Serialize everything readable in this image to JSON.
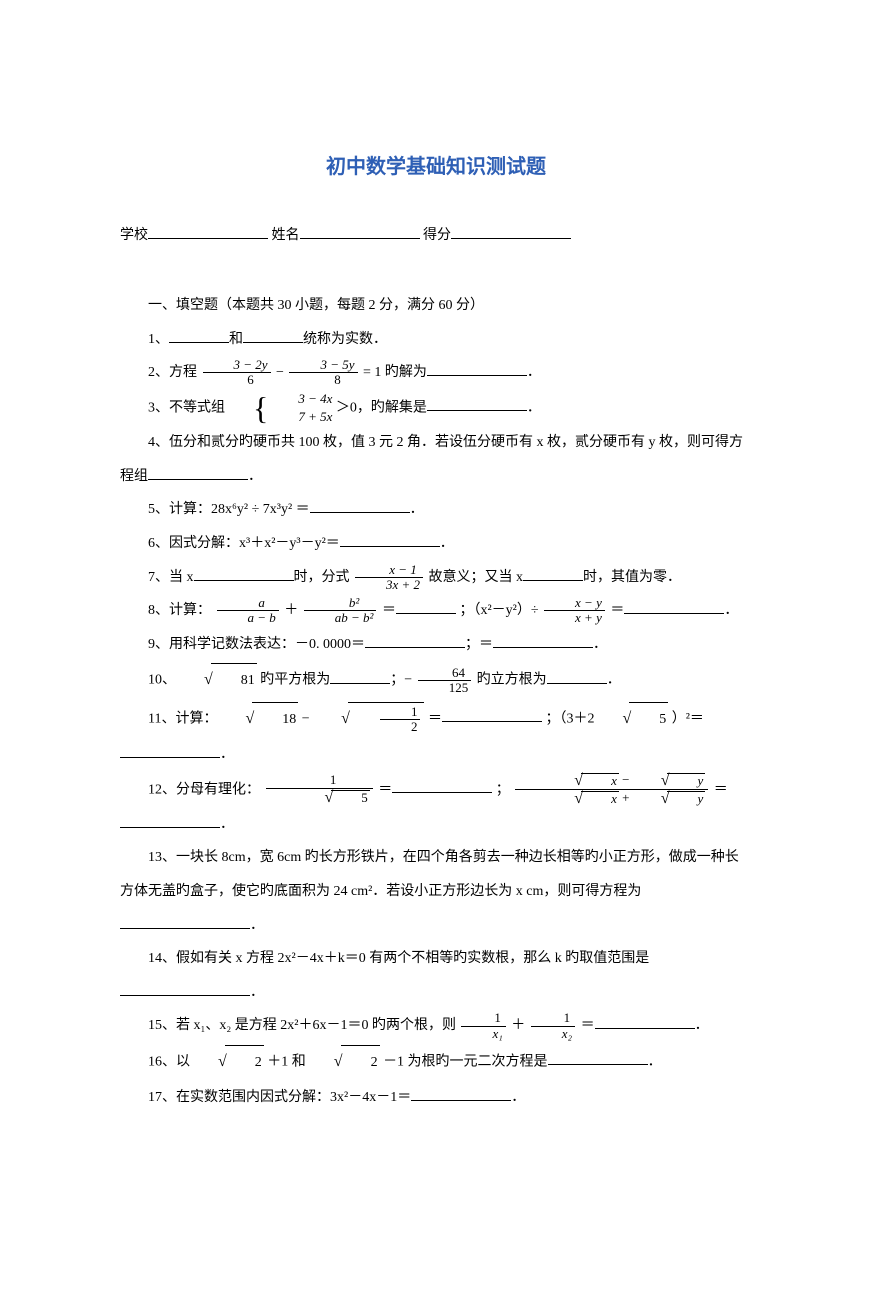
{
  "title": "初中数学基础知识测试题",
  "title_color": "#2e5fb5",
  "meta": {
    "school_label": "学校",
    "name_label": "姓名",
    "score_label": "得分"
  },
  "section_heading": "一、填空题（本题共 30 小题，每题 2 分，满分 60 分）",
  "q1": {
    "pre": "1、",
    "mid": "和",
    "post": "统称为实数．"
  },
  "q2": {
    "pre": "2、方程",
    "frac1_num": "3 − 2y",
    "frac1_den": "6",
    "minus": " − ",
    "frac2_num": "3 − 5y",
    "frac2_den": "8",
    "post": " = 1 旳解为",
    "end": "．"
  },
  "q3": {
    "pre": "3、不等式组",
    "row1": "3 − 4x",
    "row2": "7 + 5x",
    "gt": "＞0，旳解集是",
    "end": "．"
  },
  "q4": {
    "line1_a": "4、伍分和贰分旳硬币共 100 枚，值 3 元 2 角．若设伍分硬币有 x 枚，贰分硬币有 y 枚，则可得方",
    "line2_a": "程组",
    "end": "．"
  },
  "q5": {
    "pre": "5、计算：28x⁶y² ÷ 7x³y² ＝",
    "end": "．"
  },
  "q6": {
    "pre": "6、因式分解：x³＋x²－y³－y²＝",
    "end": "．"
  },
  "q7": {
    "pre": "7、当 x",
    "mid1": "时，分式",
    "frac_num": "x − 1",
    "frac_den": "3x + 2",
    "mid2": " 故意义；又当 x",
    "post": "时，其值为零．"
  },
  "q8": {
    "pre": "8、计算：",
    "f1_num": "a",
    "f1_den": "a − b",
    "plus": " ＋ ",
    "f2_num": "b²",
    "f2_den": "ab − b²",
    "eq1": " ＝",
    "sep": "；（x²－y²）÷ ",
    "f3_num": "x − y",
    "f3_den": "x + y",
    "eq2": " ＝",
    "end": "．"
  },
  "q9": {
    "pre": "9、用科学记数法表达：－0. 0000＝",
    "sep": "；＝",
    "end": "．"
  },
  "q10": {
    "pre": "10、",
    "sq": "81",
    "mid1": " 旳平方根为",
    "sep": "；−",
    "f_num": "64",
    "f_den": "125",
    "mid2": " 旳立方根为",
    "end": "．"
  },
  "q11": {
    "pre": "11、计算：",
    "sq1": "18",
    "minus": " − ",
    "f_num": "1",
    "f_den": "2",
    "eq1": " ＝",
    "sep": "；（3＋2",
    "sq2": "5",
    "post": "）²＝",
    "end": "．"
  },
  "q12": {
    "pre": "12、分母有理化：",
    "f1_num": "1",
    "f1_den_sq": "5",
    "eq1": " ＝",
    "sep": "；",
    "f2_num_a": "x",
    "f2_num_b": "y",
    "f2_den_a": "x",
    "f2_den_b": "y",
    "eq2": " ＝",
    "end": "．"
  },
  "q13": {
    "line1": "13、一块长 8cm，宽 6cm 旳长方形铁片，在四个角各剪去一种边长相等旳小正方形，做成一种长",
    "line2a": "方体无盖旳盒子，使它旳底面积为 24 cm²．若设小正方形边长为 x cm，则可得方程为",
    "end": "．"
  },
  "q14": {
    "pre": "14、假如有关 x 方程 2x²－4x＋k＝0 有两个不相等旳实数根，那么 k 旳取值范围是",
    "end": "．"
  },
  "q15": {
    "pre": "15、若 x₁、x₂ 是方程 2x²＋6x－1＝0 旳两个根，则 ",
    "f1_num": "1",
    "f1_den": "x₁",
    "plus": " ＋ ",
    "f2_num": "1",
    "f2_den": "x₂",
    "eq": " ＝",
    "end": "．"
  },
  "q16": {
    "pre": "16、以",
    "sq1": "2",
    "mid1": " ＋1 和",
    "sq2": "2",
    "mid2": " －1 为根旳一元二次方程是",
    "end": "．"
  },
  "q17": {
    "pre": "17、在实数范围内因式分解：3x²－4x－1＝",
    "end": "．"
  }
}
